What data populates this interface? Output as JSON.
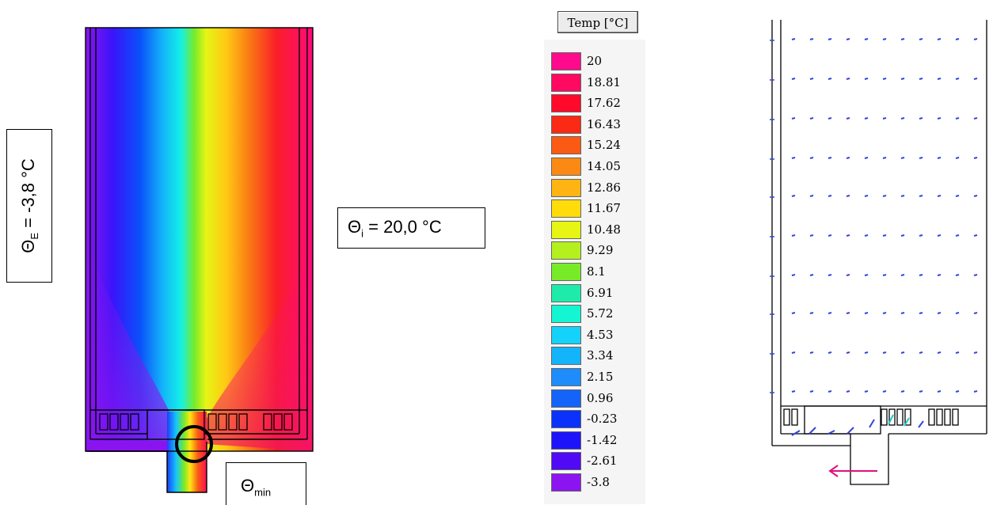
{
  "labels": {
    "exterior": {
      "theta": "Θ",
      "sub": "E",
      "rest": " = -3,8 °C"
    },
    "interior": {
      "theta": "Θ",
      "sub": "i",
      "rest": " = 20,0 °C"
    },
    "minimum": {
      "theta": "Θ",
      "sub": "min"
    }
  },
  "legend": {
    "title": "Temp [°C]",
    "entries": [
      {
        "value": "20",
        "color": "#ff0a8c"
      },
      {
        "value": "18.81",
        "color": "#ff0a60"
      },
      {
        "value": "17.62",
        "color": "#ff0a2a"
      },
      {
        "value": "16.43",
        "color": "#fa2a14"
      },
      {
        "value": "15.24",
        "color": "#fa5a14"
      },
      {
        "value": "14.05",
        "color": "#fa8a14"
      },
      {
        "value": "12.86",
        "color": "#ffb414"
      },
      {
        "value": "11.67",
        "color": "#ffdc0a"
      },
      {
        "value": "10.48",
        "color": "#e6f514"
      },
      {
        "value": "9.29",
        "color": "#b4f01e"
      },
      {
        "value": "8.1",
        "color": "#78eb28"
      },
      {
        "value": "6.91",
        "color": "#1eebaa"
      },
      {
        "value": "5.72",
        "color": "#14f5d2"
      },
      {
        "value": "4.53",
        "color": "#14d2fa"
      },
      {
        "value": "3.34",
        "color": "#14b4fa"
      },
      {
        "value": "2.15",
        "color": "#1e8cfa"
      },
      {
        "value": "0.96",
        "color": "#1464fa"
      },
      {
        "value": "-0.23",
        "color": "#0a32fa"
      },
      {
        "value": "-1.42",
        "color": "#1e14fa"
      },
      {
        "value": "-2.61",
        "color": "#500af5"
      },
      {
        "value": "-3.8",
        "color": "#8c14f0"
      }
    ]
  },
  "colors": {
    "arrow": "#3344dd",
    "arrow_hot": "#e0107a",
    "arrow_cyan": "#20c8c8"
  }
}
